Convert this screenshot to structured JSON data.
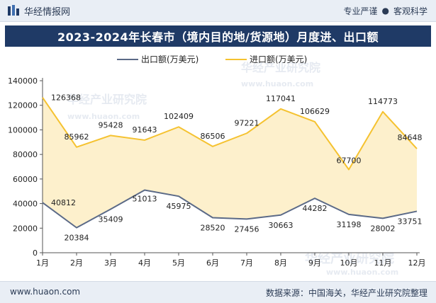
{
  "header": {
    "brand": "华经情报网",
    "motto_left": "专业严谨",
    "motto_sep": "●",
    "motto_right": "客观科学"
  },
  "title": "2023-2024年长春市（境内目的地/货源地）月度进、出口额",
  "footer": {
    "site": "www.huaon.com",
    "source": "数据来源：中国海关，华经产业研究院整理"
  },
  "watermarks": [
    "华经产业研究院",
    "www.huaon.com",
    "华经产业研究院",
    "www.huaon.com",
    "华经产业研究院",
    "www.huaon.com"
  ],
  "colors": {
    "export": "#5b6a87",
    "import": "#f5c230",
    "import_fill": "#fdf0cc"
  },
  "chart_data": {
    "type": "area",
    "categories": [
      "1月",
      "2月",
      "3月",
      "4月",
      "5月",
      "6月",
      "7月",
      "8月",
      "9月",
      "10月",
      "11月",
      "12月"
    ],
    "series": [
      {
        "name": "出口额(万美元)",
        "values": [
          40812,
          20384,
          35409,
          51013,
          45975,
          28520,
          27456,
          30663,
          44282,
          31198,
          28002,
          33751
        ]
      },
      {
        "name": "进口额(万美元)",
        "values": [
          126368,
          85962,
          95428,
          91643,
          102409,
          86506,
          97221,
          117041,
          106629,
          67700,
          114773,
          84648
        ]
      }
    ],
    "yticks": [
      "0",
      "20000",
      "40000",
      "60000",
      "80000",
      "100000",
      "120000",
      "140000"
    ],
    "ylim": [
      0,
      140000
    ],
    "grid": false,
    "legend": "top"
  }
}
